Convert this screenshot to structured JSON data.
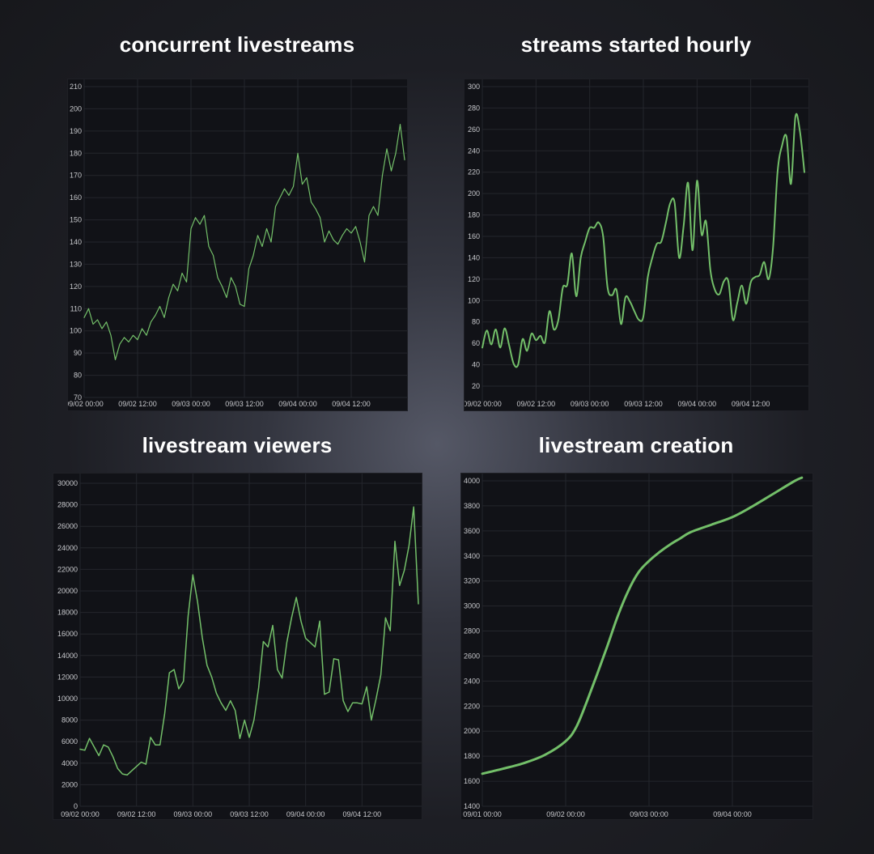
{
  "theme": {
    "line_color": "#73bf69",
    "panel_bg": "#111217",
    "grid_color": "#24262c",
    "tick_color": "#c7c8cc",
    "title_color": "#ffffff"
  },
  "chart_data": [
    {
      "type": "line",
      "title": "concurrent livestreams",
      "x_start": "09/02 00:00",
      "interval_hours": 1,
      "values": [
        106,
        110,
        103,
        105,
        101,
        104,
        98,
        87,
        94,
        97,
        95,
        98,
        96,
        101,
        98,
        104,
        107,
        111,
        106,
        115,
        121,
        118,
        126,
        122,
        146,
        151,
        148,
        152,
        138,
        134,
        124,
        120,
        115,
        124,
        120,
        112,
        111,
        128,
        134,
        143,
        138,
        146,
        140,
        156,
        160,
        164,
        161,
        165,
        180,
        166,
        169,
        158,
        155,
        151,
        140,
        145,
        141,
        139,
        143,
        146,
        144,
        147,
        140,
        131,
        152,
        156,
        152,
        170,
        182,
        172,
        180,
        193,
        177
      ],
      "ylim": [
        70,
        210
      ],
      "yticks": [
        70,
        80,
        90,
        100,
        110,
        120,
        130,
        140,
        150,
        160,
        170,
        180,
        190,
        200,
        210
      ],
      "xticks": [
        "09/02 00:00",
        "09/02 12:00",
        "09/03 00:00",
        "09/03 12:00",
        "09/04 00:00",
        "09/04 12:00"
      ],
      "grid": true,
      "curve": "linear"
    },
    {
      "type": "line",
      "title": "streams started hourly",
      "x_start": "09/02 00:00",
      "interval_hours": 1,
      "values": [
        56,
        72,
        59,
        73,
        56,
        74,
        58,
        41,
        40,
        64,
        53,
        69,
        63,
        67,
        61,
        90,
        73,
        82,
        112,
        115,
        144,
        104,
        140,
        155,
        168,
        168,
        173,
        160,
        112,
        105,
        110,
        78,
        103,
        99,
        90,
        82,
        85,
        122,
        140,
        153,
        155,
        172,
        191,
        191,
        140,
        170,
        210,
        147,
        212,
        162,
        174,
        128,
        110,
        106,
        118,
        118,
        82,
        98,
        114,
        97,
        117,
        122,
        124,
        136,
        120,
        150,
        220,
        245,
        253,
        209,
        272,
        258,
        220
      ],
      "ylim": [
        20,
        300
      ],
      "yticks": [
        20,
        40,
        60,
        80,
        100,
        120,
        140,
        160,
        180,
        200,
        220,
        240,
        260,
        280,
        300
      ],
      "xticks": [
        "09/02 00:00",
        "09/02 12:00",
        "09/03 00:00",
        "09/03 12:00",
        "09/04 00:00",
        "09/04 12:00"
      ],
      "grid": true,
      "curve": "smooth"
    },
    {
      "type": "line",
      "title": "livestream viewers",
      "x_start": "09/02 00:00",
      "interval_hours": 1,
      "values": [
        5300,
        5200,
        6300,
        5500,
        4700,
        5700,
        5500,
        4600,
        3500,
        3000,
        2900,
        3300,
        3700,
        4100,
        3900,
        6400,
        5700,
        5700,
        8600,
        12400,
        12700,
        10900,
        11600,
        17700,
        21500,
        19000,
        15700,
        13100,
        12000,
        10500,
        9600,
        8900,
        9800,
        8900,
        6300,
        8000,
        6400,
        8000,
        11000,
        15300,
        14800,
        16800,
        12700,
        11900,
        15200,
        17500,
        19400,
        17200,
        15600,
        15200,
        14800,
        17200,
        10400,
        10600,
        13700,
        13600,
        9800,
        8800,
        9600,
        9600,
        9500,
        11100,
        8000,
        10000,
        12200,
        17500,
        16300,
        24600,
        20500,
        21900,
        24200,
        27800,
        18800
      ],
      "ylim": [
        0,
        30000
      ],
      "yticks": [
        0,
        2000,
        4000,
        6000,
        8000,
        10000,
        12000,
        14000,
        16000,
        18000,
        20000,
        22000,
        24000,
        26000,
        28000,
        30000
      ],
      "xticks": [
        "09/02 00:00",
        "09/02 12:00",
        "09/03 00:00",
        "09/03 12:00",
        "09/04 00:00",
        "09/04 12:00"
      ],
      "grid": true,
      "curve": "linear"
    },
    {
      "type": "line",
      "title": "livestream creation",
      "points": [
        [
          "09/01 00:00",
          1660
        ],
        [
          "09/01 06:00",
          1700
        ],
        [
          "09/01 12:00",
          1745
        ],
        [
          "09/01 18:00",
          1810
        ],
        [
          "09/02 00:00",
          1920
        ],
        [
          "09/02 03:00",
          2030
        ],
        [
          "09/02 06:00",
          2230
        ],
        [
          "09/02 09:00",
          2450
        ],
        [
          "09/02 12:00",
          2680
        ],
        [
          "09/02 15:00",
          2920
        ],
        [
          "09/02 18:00",
          3120
        ],
        [
          "09/02 21:00",
          3270
        ],
        [
          "09/03 00:00",
          3360
        ],
        [
          "09/03 03:00",
          3430
        ],
        [
          "09/03 06:00",
          3490
        ],
        [
          "09/03 09:00",
          3540
        ],
        [
          "09/03 12:00",
          3590
        ],
        [
          "09/03 18:00",
          3650
        ],
        [
          "09/04 00:00",
          3710
        ],
        [
          "09/04 06:00",
          3800
        ],
        [
          "09/04 12:00",
          3900
        ],
        [
          "09/04 18:00",
          4000
        ],
        [
          "09/04 20:00",
          4025
        ]
      ],
      "ylim": [
        1400,
        4000
      ],
      "yticks": [
        1400,
        1600,
        1800,
        2000,
        2200,
        2400,
        2600,
        2800,
        3000,
        3200,
        3400,
        3600,
        3800,
        4000
      ],
      "xticks": [
        "09/01 00:00",
        "09/02 00:00",
        "09/03 00:00",
        "09/04 00:00"
      ],
      "grid": true,
      "curve": "smooth"
    }
  ]
}
